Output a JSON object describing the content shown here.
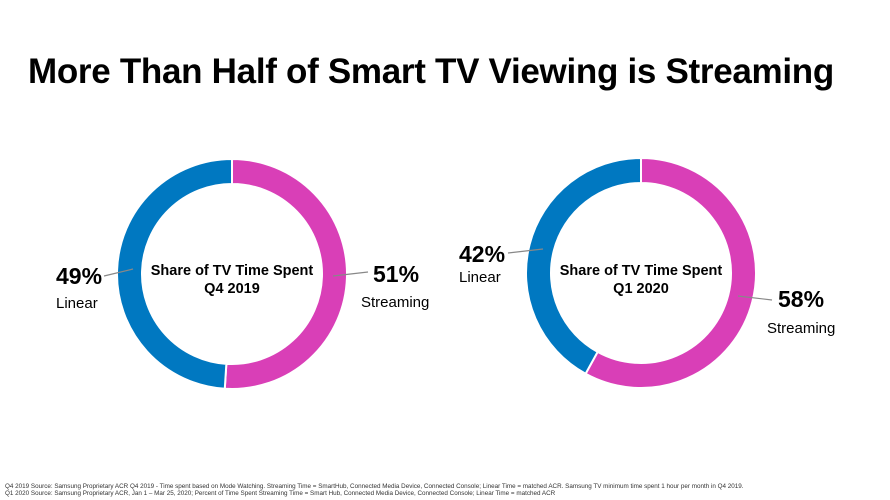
{
  "title": "More Than Half of Smart TV Viewing is Streaming",
  "colors": {
    "streaming": "#D93FB7",
    "linear": "#0078C1"
  },
  "chart_data": [
    {
      "type": "pie",
      "donut": true,
      "title": [
        "Share of TV Time Spent",
        "Q4 2019"
      ],
      "slices": [
        {
          "name": "Streaming",
          "value": 51,
          "label": "51%"
        },
        {
          "name": "Linear",
          "value": 49,
          "label": "49%"
        }
      ]
    },
    {
      "type": "pie",
      "donut": true,
      "title": [
        "Share of TV Time Spent",
        "Q1 2020"
      ],
      "slices": [
        {
          "name": "Streaming",
          "value": 58,
          "label": "58%"
        },
        {
          "name": "Linear",
          "value": 42,
          "label": "42%"
        }
      ]
    }
  ],
  "footer": [
    "Q4 2019 Source:  Samsung Proprietary ACR Q4 2019 - Time spent based on Mode Watching.  Streaming Time = SmartHub, Connected Media Device, Connected Console; Linear Time = matched ACR.  Samsung TV minimum time spent 1 hour per month in Q4 2019.",
    "Q1 2020 Source:  Samsung Proprietary ACR, Jan 1 – Mar 25, 2020; Percent of Time Spent Streaming Time = Smart Hub, Connected Media Device, Connected Console; Linear Time = matched ACR"
  ]
}
